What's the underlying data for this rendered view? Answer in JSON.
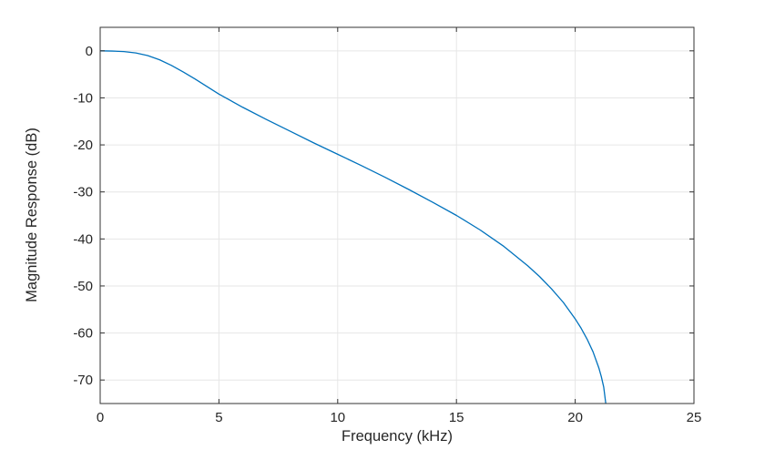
{
  "figure": {
    "background": "#ffffff",
    "axes_color": "#333333",
    "grid_color": "#e6e6e6",
    "text_color": "#262626"
  },
  "chart_data": {
    "type": "line",
    "title": "",
    "xlabel": "Frequency (kHz)",
    "ylabel": "Magnitude Response (dB)",
    "xlim": [
      0,
      25
    ],
    "ylim": [
      -75,
      5
    ],
    "xticks": [
      0,
      5,
      10,
      15,
      20,
      25
    ],
    "yticks": [
      0,
      -10,
      -20,
      -30,
      -40,
      -50,
      -60,
      -70
    ],
    "grid": true,
    "legend_position": "none",
    "line_color": "#0072BD",
    "series": [
      {
        "name": "magnitude-response",
        "x": [
          0,
          0.5,
          1,
          1.5,
          2,
          2.5,
          3,
          3.5,
          4,
          4.5,
          5,
          6,
          7,
          8,
          9,
          10,
          11,
          12,
          13,
          14,
          15,
          16,
          17,
          18,
          18.5,
          19,
          19.5,
          20,
          20.25,
          20.5,
          20.75,
          21,
          21.1,
          21.2,
          21.3
        ],
        "y": [
          0,
          -0.05,
          -0.15,
          -0.45,
          -1.0,
          -1.9,
          -3.1,
          -4.5,
          -6.0,
          -7.6,
          -9.2,
          -12.0,
          -14.6,
          -17.1,
          -19.6,
          -22.0,
          -24.4,
          -26.9,
          -29.5,
          -32.2,
          -35.0,
          -38.1,
          -41.6,
          -45.7,
          -48.0,
          -50.6,
          -53.5,
          -57.0,
          -59.0,
          -61.3,
          -64.0,
          -67.5,
          -69.3,
          -71.5,
          -75.5
        ]
      }
    ]
  }
}
